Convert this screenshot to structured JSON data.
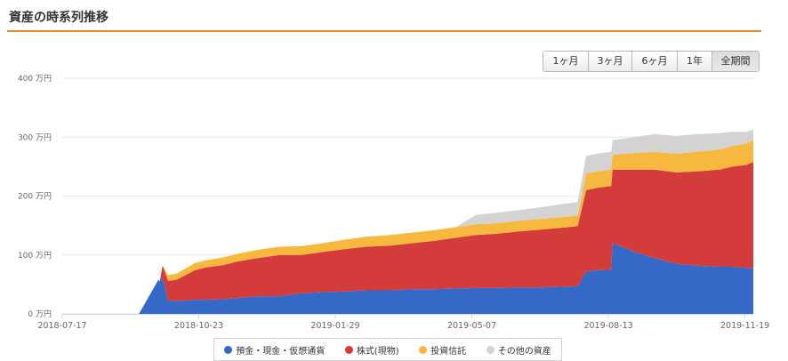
{
  "header": {
    "title": "資産の時系列推移"
  },
  "range_buttons": [
    {
      "label": "1ヶ月",
      "active": false
    },
    {
      "label": "3ヶ月",
      "active": false
    },
    {
      "label": "6ヶ月",
      "active": false
    },
    {
      "label": "1年",
      "active": false
    },
    {
      "label": "全期間",
      "active": true
    }
  ],
  "chart_data": {
    "type": "area",
    "stacked": true,
    "y_unit": "万円",
    "ylim": [
      0,
      400
    ],
    "y_ticks": [
      "0 万円",
      "100 万円",
      "200 万円",
      "300 万円",
      "400 万円"
    ],
    "x_ticks": [
      "2018-07-17",
      "2018-10-23",
      "2019-01-29",
      "2019-05-07",
      "2019-08-13",
      "2019-11-19"
    ],
    "xlim": [
      "2018-07-17",
      "2019-11-25"
    ],
    "grid": true,
    "legend_position": "bottom",
    "x": [
      "2018-07-17",
      "2018-09-10",
      "2018-09-24",
      "2018-09-25",
      "2018-09-27",
      "2018-10-01",
      "2018-10-07",
      "2018-10-12",
      "2018-10-20",
      "2018-10-28",
      "2018-11-10",
      "2018-11-20",
      "2018-12-05",
      "2018-12-20",
      "2019-01-05",
      "2019-01-20",
      "2019-02-05",
      "2019-02-20",
      "2019-03-10",
      "2019-03-25",
      "2019-04-10",
      "2019-04-25",
      "2019-05-10",
      "2019-05-25",
      "2019-06-10",
      "2019-06-25",
      "2019-07-10",
      "2019-07-22",
      "2019-07-28",
      "2019-08-05",
      "2019-08-15",
      "2019-08-16",
      "2019-09-01",
      "2019-09-15",
      "2019-10-01",
      "2019-10-15",
      "2019-11-01",
      "2019-11-10",
      "2019-11-20",
      "2019-11-25"
    ],
    "series": [
      {
        "name": "預金・現金・仮想通貨",
        "color": "#3469c7",
        "values": [
          0,
          0,
          58,
          55,
          62,
          22,
          22,
          22,
          24,
          24,
          25,
          27,
          30,
          30,
          35,
          37,
          38,
          40,
          40,
          42,
          42,
          43,
          44,
          44,
          45,
          45,
          46,
          47,
          72,
          74,
          75,
          120,
          105,
          95,
          85,
          82,
          80,
          80,
          78,
          78
        ]
      },
      {
        "name": "株式(現物)",
        "color": "#d43c3c",
        "values": [
          0,
          0,
          0,
          0,
          20,
          34,
          36,
          42,
          50,
          55,
          58,
          62,
          65,
          70,
          65,
          68,
          72,
          74,
          76,
          78,
          82,
          86,
          90,
          92,
          95,
          98,
          100,
          102,
          138,
          140,
          142,
          125,
          140,
          150,
          155,
          160,
          165,
          170,
          175,
          180
        ]
      },
      {
        "name": "投資信託",
        "color": "#f6b83d",
        "values": [
          0,
          0,
          0,
          0,
          0,
          10,
          10,
          11,
          12,
          12,
          13,
          13,
          14,
          14,
          15,
          15,
          16,
          17,
          18,
          18,
          18,
          18,
          18,
          18,
          18,
          18,
          18,
          18,
          28,
          28,
          28,
          25,
          28,
          30,
          32,
          33,
          34,
          35,
          36,
          37
        ]
      },
      {
        "name": "その他の資産",
        "color": "#d3d3d3",
        "values": [
          0,
          0,
          0,
          0,
          0,
          0,
          0,
          0,
          0,
          0,
          0,
          0,
          0,
          0,
          0,
          0,
          0,
          0,
          0,
          0,
          0,
          0,
          16,
          18,
          18,
          20,
          22,
          23,
          30,
          30,
          30,
          25,
          27,
          30,
          30,
          30,
          28,
          24,
          20,
          18
        ]
      }
    ]
  }
}
